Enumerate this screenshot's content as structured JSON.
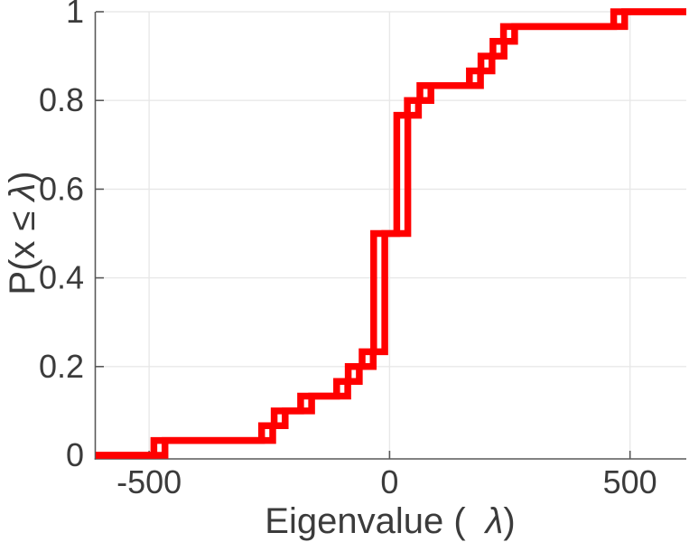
{
  "chart_data": {
    "type": "line",
    "subtype": "empirical-cdf-staircase",
    "title": "",
    "xlabel": "Eigenvalue ( λ)",
    "xlabel_parts": {
      "prefix": "Eigenvalue (",
      "lambda": "λ",
      "suffix": ")"
    },
    "ylabel": "P(x ≤ λ)",
    "ylabel_parts": {
      "prefix": "P(x ≤ ",
      "lambda": "λ",
      "suffix": ")"
    },
    "xlim": [
      -611,
      617
    ],
    "ylim": [
      0,
      1
    ],
    "x_ticks": [
      {
        "value": -500,
        "label": "-500"
      },
      {
        "value": 0,
        "label": "0"
      },
      {
        "value": 500,
        "label": "500"
      }
    ],
    "y_ticks": [
      {
        "value": 0,
        "label": "0"
      },
      {
        "value": 0.2,
        "label": "0.2"
      },
      {
        "value": 0.4,
        "label": "0.4"
      },
      {
        "value": 0.6,
        "label": "0.6"
      },
      {
        "value": 0.8,
        "label": "0.8"
      },
      {
        "value": 1,
        "label": "1"
      }
    ],
    "grid": true,
    "legend": "none",
    "sample_size": 30,
    "line_color": "#ff0000",
    "line_width": 7.5,
    "grid_color": "#e8e8e8",
    "axis_color": "#595959",
    "text_color": "#3b3b3b",
    "duplicate_curve_x_offset": 23,
    "steps": [
      {
        "x": -490,
        "p": 0.0333
      },
      {
        "x": -266,
        "p": 0.0667
      },
      {
        "x": -240,
        "p": 0.1
      },
      {
        "x": -185,
        "p": 0.1333
      },
      {
        "x": -110,
        "p": 0.1667
      },
      {
        "x": -86,
        "p": 0.2
      },
      {
        "x": -57,
        "p": 0.2333
      },
      {
        "x": -33,
        "p": 0.5
      },
      {
        "x": 15,
        "p": 0.7667
      },
      {
        "x": 37,
        "p": 0.8
      },
      {
        "x": 63,
        "p": 0.8333
      },
      {
        "x": 166,
        "p": 0.8667
      },
      {
        "x": 190,
        "p": 0.9
      },
      {
        "x": 215,
        "p": 0.9333
      },
      {
        "x": 237,
        "p": 0.9667
      },
      {
        "x": 466,
        "p": 1
      }
    ]
  }
}
